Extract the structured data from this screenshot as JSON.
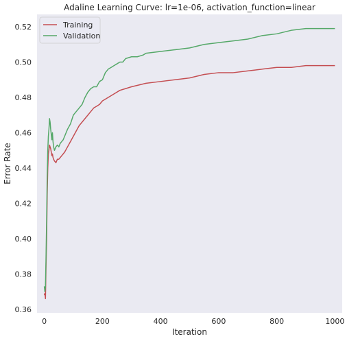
{
  "chart_data": {
    "type": "line",
    "title": "Adaline Learning Curve: lr=1e-06, activation_function=linear",
    "xlabel": "Iteration",
    "ylabel": "Error Rate",
    "xlim": [
      -25,
      1025
    ],
    "ylim": [
      0.358,
      0.527
    ],
    "xticks": [
      0,
      200,
      400,
      600,
      800,
      1000
    ],
    "yticks": [
      0.36,
      0.38,
      0.4,
      0.42,
      0.44,
      0.46,
      0.48,
      0.5,
      0.52
    ],
    "xtick_labels": [
      "0",
      "200",
      "400",
      "600",
      "800",
      "1000"
    ],
    "ytick_labels": [
      "0.36",
      "0.38",
      "0.40",
      "0.42",
      "0.44",
      "0.46",
      "0.48",
      "0.50",
      "0.52"
    ],
    "grid": false,
    "background": "#eaeaf2",
    "legend_position": "upper-left",
    "series": [
      {
        "name": "Training",
        "color": "#c44e52",
        "x": [
          0,
          2,
          4,
          6,
          8,
          10,
          12,
          14,
          16,
          18,
          20,
          22,
          24,
          26,
          28,
          30,
          32,
          35,
          40,
          45,
          50,
          55,
          60,
          65,
          70,
          80,
          90,
          100,
          110,
          120,
          130,
          140,
          150,
          160,
          170,
          180,
          190,
          200,
          220,
          240,
          260,
          280,
          300,
          350,
          400,
          450,
          500,
          550,
          600,
          650,
          700,
          750,
          800,
          850,
          900,
          950,
          1000
        ],
        "y": [
          0.368,
          0.369,
          0.366,
          0.385,
          0.4,
          0.425,
          0.44,
          0.448,
          0.45,
          0.453,
          0.452,
          0.451,
          0.449,
          0.447,
          0.448,
          0.446,
          0.445,
          0.444,
          0.443,
          0.445,
          0.445,
          0.446,
          0.447,
          0.448,
          0.449,
          0.452,
          0.455,
          0.458,
          0.461,
          0.464,
          0.466,
          0.468,
          0.47,
          0.472,
          0.474,
          0.475,
          0.476,
          0.478,
          0.48,
          0.482,
          0.484,
          0.485,
          0.486,
          0.488,
          0.489,
          0.49,
          0.491,
          0.493,
          0.494,
          0.494,
          0.495,
          0.496,
          0.497,
          0.497,
          0.498,
          0.498,
          0.498
        ]
      },
      {
        "name": "Validation",
        "color": "#55a868",
        "x": [
          0,
          2,
          4,
          6,
          8,
          10,
          12,
          14,
          16,
          18,
          20,
          22,
          24,
          26,
          28,
          30,
          32,
          35,
          40,
          45,
          50,
          55,
          60,
          65,
          70,
          80,
          90,
          100,
          110,
          120,
          130,
          140,
          150,
          160,
          170,
          180,
          190,
          200,
          210,
          220,
          230,
          240,
          250,
          260,
          270,
          280,
          300,
          320,
          340,
          350,
          400,
          450,
          500,
          550,
          600,
          650,
          700,
          750,
          800,
          850,
          900,
          950,
          1000
        ],
        "y": [
          0.373,
          0.37,
          0.373,
          0.39,
          0.41,
          0.435,
          0.45,
          0.458,
          0.462,
          0.468,
          0.466,
          0.462,
          0.459,
          0.456,
          0.46,
          0.455,
          0.452,
          0.45,
          0.452,
          0.453,
          0.452,
          0.454,
          0.455,
          0.456,
          0.458,
          0.462,
          0.465,
          0.47,
          0.472,
          0.474,
          0.476,
          0.48,
          0.483,
          0.485,
          0.486,
          0.486,
          0.489,
          0.49,
          0.494,
          0.496,
          0.497,
          0.498,
          0.499,
          0.5,
          0.5,
          0.502,
          0.503,
          0.503,
          0.504,
          0.505,
          0.506,
          0.507,
          0.508,
          0.51,
          0.511,
          0.512,
          0.513,
          0.515,
          0.516,
          0.518,
          0.519,
          0.519,
          0.519
        ]
      }
    ]
  }
}
